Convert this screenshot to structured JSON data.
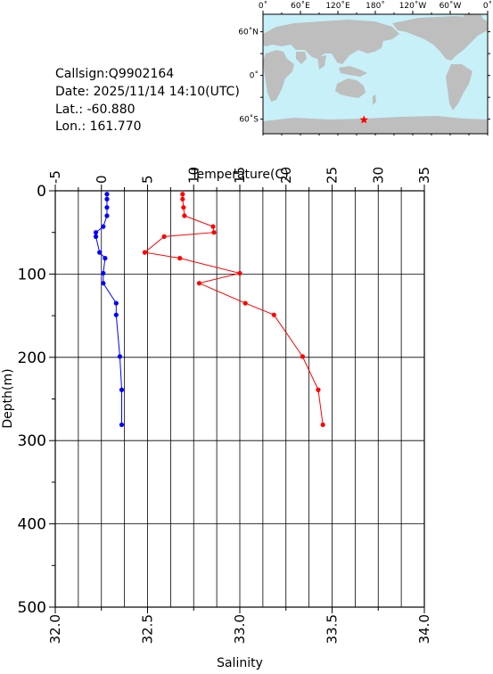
{
  "info": {
    "callsign": "Callsign:Q9902164",
    "date": "Date:  2025/11/14 14:10(UTC)",
    "lat": "Lat.:  -60.880",
    "lon": "Lon.:  161.770"
  },
  "map": {
    "top_labels": [
      "0˚",
      "60˚E",
      "120˚E",
      "180˚",
      "120˚W",
      "60˚W",
      "0˚"
    ],
    "lat_labels": [
      "60˚N",
      "0˚",
      "60˚S"
    ],
    "ocean_color": "#c8f0f8",
    "land_color": "#bebebe",
    "marker": {
      "lon": 161.77,
      "lat": -60.88,
      "symbol": "star",
      "color": "#ff0000"
    }
  },
  "chart_data": {
    "type": "line",
    "title": "",
    "x_top_label": "Temperature(C)",
    "x_bottom_label": "Salinity",
    "ylabel": "Depth(m)",
    "temperature_range": [
      -5,
      35
    ],
    "temperature_ticks": [
      "-5",
      "0",
      "5",
      "10",
      "15",
      "20",
      "25",
      "30",
      "35"
    ],
    "salinity_range": [
      32.0,
      34.0
    ],
    "salinity_ticks": [
      "32.0",
      "32.5",
      "33.0",
      "33.5",
      "34.0"
    ],
    "depth_range": [
      0,
      500
    ],
    "depth_ticks": [
      "0",
      "100",
      "200",
      "300",
      "400",
      "500"
    ],
    "grid": true,
    "series": [
      {
        "axis": "temperature",
        "color": "#ff0000",
        "points": [
          [
            8.8,
            4
          ],
          [
            8.8,
            10
          ],
          [
            8.9,
            20
          ],
          [
            9.0,
            30
          ],
          [
            12.1,
            43
          ],
          [
            12.2,
            50
          ],
          [
            6.8,
            55
          ],
          [
            4.7,
            74
          ],
          [
            8.5,
            81
          ],
          [
            15.0,
            99
          ],
          [
            10.6,
            111
          ],
          [
            15.6,
            135
          ],
          [
            18.7,
            149
          ],
          [
            21.8,
            199
          ],
          [
            23.5,
            239
          ],
          [
            24.0,
            281
          ]
        ]
      },
      {
        "axis": "salinity",
        "color": "#0000ff",
        "points": [
          [
            32.28,
            4
          ],
          [
            32.28,
            10
          ],
          [
            32.28,
            20
          ],
          [
            32.28,
            30
          ],
          [
            32.26,
            43
          ],
          [
            32.22,
            50
          ],
          [
            32.22,
            55
          ],
          [
            32.24,
            74
          ],
          [
            32.27,
            81
          ],
          [
            32.26,
            99
          ],
          [
            32.26,
            111
          ],
          [
            32.33,
            135
          ],
          [
            32.33,
            149
          ],
          [
            32.35,
            199
          ],
          [
            32.36,
            239
          ],
          [
            32.36,
            281
          ]
        ]
      }
    ]
  }
}
